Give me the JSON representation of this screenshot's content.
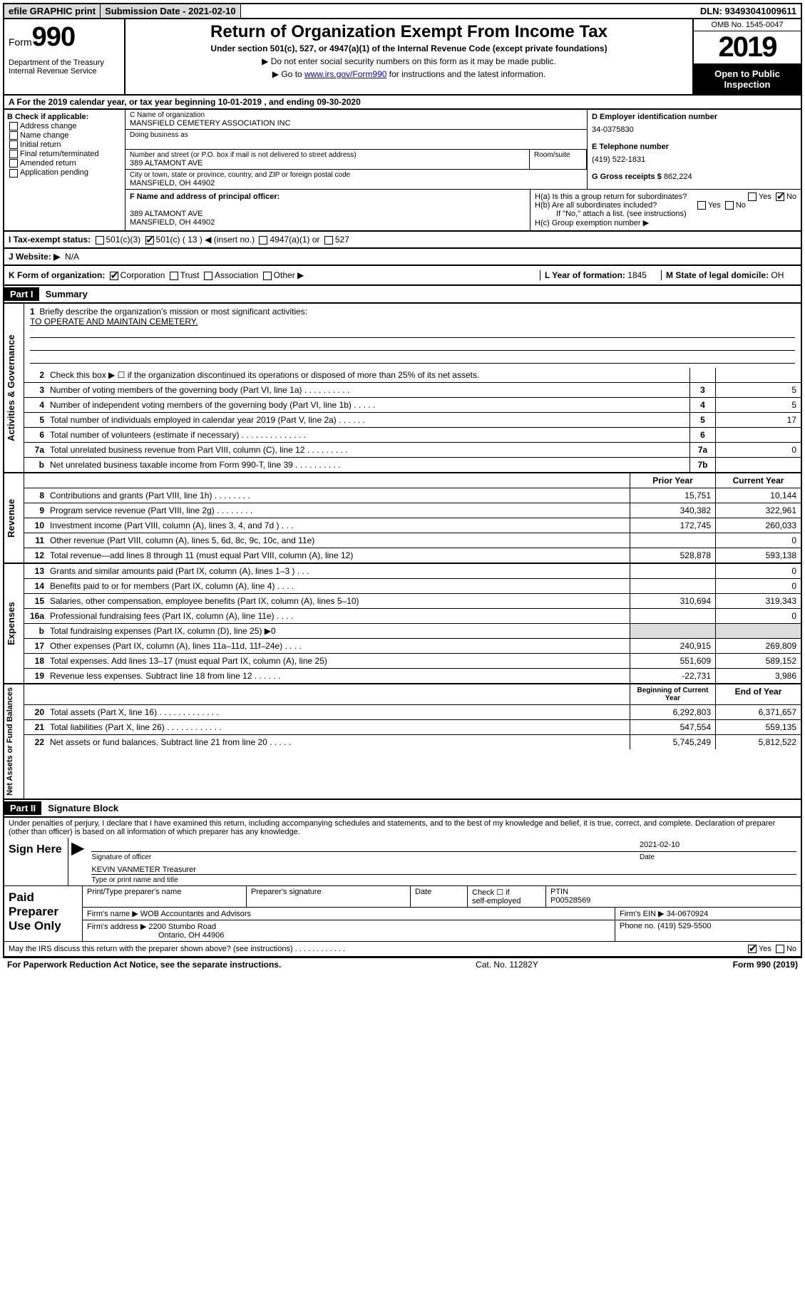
{
  "topbar": {
    "efile": "efile GRAPHIC print",
    "submission": "Submission Date - 2021-02-10",
    "dln": "DLN: 93493041009611"
  },
  "header": {
    "form_word": "Form",
    "form_num": "990",
    "dept": "Department of the Treasury\nInternal Revenue Service",
    "title": "Return of Organization Exempt From Income Tax",
    "subtitle": "Under section 501(c), 527, or 4947(a)(1) of the Internal Revenue Code (except private foundations)",
    "line1": "▶ Do not enter social security numbers on this form as it may be made public.",
    "line2_pre": "▶ Go to ",
    "line2_link": "www.irs.gov/Form990",
    "line2_post": " for instructions and the latest information.",
    "omb": "OMB No. 1545-0047",
    "year": "2019",
    "inspection": "Open to Public Inspection"
  },
  "section_a": "A For the 2019 calendar year, or tax year beginning 10-01-2019    , and ending 09-30-2020",
  "block_b": {
    "title": "B Check if applicable:",
    "items": [
      "Address change",
      "Name change",
      "Initial return",
      "Final return/terminated",
      "Amended return",
      "Application pending"
    ]
  },
  "block_c": {
    "name_label": "C Name of organization",
    "name": "MANSFIELD CEMETERY ASSOCIATION INC",
    "dba_label": "Doing business as",
    "street_label": "Number and street (or P.O. box if mail is not delivered to street address)",
    "room_label": "Room/suite",
    "street": "389 ALTAMONT AVE",
    "city_label": "City or town, state or province, country, and ZIP or foreign postal code",
    "city": "MANSFIELD, OH  44902"
  },
  "block_d": {
    "label": "D Employer identification number",
    "value": "34-0375830",
    "e_label": "E Telephone number",
    "e_value": "(419) 522-1831",
    "g_label": "G Gross receipts $",
    "g_value": "862,224"
  },
  "block_f": {
    "label": "F Name and address of principal officer:",
    "addr1": "389 ALTAMONT AVE",
    "addr2": "MANSFIELD, OH  44902"
  },
  "block_h": {
    "a": "H(a)  Is this a group return for subordinates?",
    "b": "H(b)  Are all subordinates included?",
    "note": "If \"No,\" attach a list. (see instructions)",
    "c": "H(c)  Group exemption number ▶"
  },
  "block_i": {
    "label": "I   Tax-exempt status:",
    "opts": [
      "501(c)(3)",
      "501(c) ( 13 ) ◀ (insert no.)",
      "4947(a)(1) or",
      "527"
    ]
  },
  "block_j": {
    "label": "J   Website: ▶",
    "value": "N/A"
  },
  "block_k": {
    "label": "K Form of organization:",
    "opts": [
      "Corporation",
      "Trust",
      "Association",
      "Other ▶"
    ],
    "l_label": "L Year of formation:",
    "l_value": "1845",
    "m_label": "M State of legal domicile:",
    "m_value": "OH"
  },
  "part1": {
    "tag": "Part I",
    "title": "Summary"
  },
  "mission": {
    "num": "1",
    "label": "Briefly describe the organization's mission or most significant activities:",
    "text": "TO OPERATE AND MAINTAIN CEMETERY."
  },
  "lines_gov": [
    {
      "n": "2",
      "t": "Check this box ▶ ☐  if the organization discontinued its operations or disposed of more than 25% of its net assets.",
      "box": "",
      "v": ""
    },
    {
      "n": "3",
      "t": "Number of voting members of the governing body (Part VI, line 1a)  .   .   .   .   .   .   .   .   .   .",
      "box": "3",
      "v": "5"
    },
    {
      "n": "4",
      "t": "Number of independent voting members of the governing body (Part VI, line 1b)  .   .   .   .   .",
      "box": "4",
      "v": "5"
    },
    {
      "n": "5",
      "t": "Total number of individuals employed in calendar year 2019 (Part V, line 2a)  .   .   .   .   .   .",
      "box": "5",
      "v": "17"
    },
    {
      "n": "6",
      "t": "Total number of volunteers (estimate if necessary)  .   .   .   .   .   .   .   .   .   .   .   .   .   .",
      "box": "6",
      "v": ""
    },
    {
      "n": "7a",
      "t": "Total unrelated business revenue from Part VIII, column (C), line 12  .   .   .   .   .   .   .   .   .",
      "box": "7a",
      "v": "0"
    },
    {
      "n": "b",
      "t": "Net unrelated business taxable income from Form 990-T, line 39  .   .   .   .   .   .   .   .   .   .",
      "box": "7b",
      "v": ""
    }
  ],
  "year_headers": {
    "prior": "Prior Year",
    "current": "Current Year"
  },
  "lines_rev": [
    {
      "n": "8",
      "t": "Contributions and grants (Part VIII, line 1h)  .   .   .   .   .   .   .   .",
      "p": "15,751",
      "c": "10,144"
    },
    {
      "n": "9",
      "t": "Program service revenue (Part VIII, line 2g)  .   .   .   .   .   .   .   .",
      "p": "340,382",
      "c": "322,961"
    },
    {
      "n": "10",
      "t": "Investment income (Part VIII, column (A), lines 3, 4, and 7d )  .   .   .",
      "p": "172,745",
      "c": "260,033"
    },
    {
      "n": "11",
      "t": "Other revenue (Part VIII, column (A), lines 5, 6d, 8c, 9c, 10c, and 11e)",
      "p": "",
      "c": "0"
    },
    {
      "n": "12",
      "t": "Total revenue—add lines 8 through 11 (must equal Part VIII, column (A), line 12)",
      "p": "528,878",
      "c": "593,138"
    }
  ],
  "lines_exp": [
    {
      "n": "13",
      "t": "Grants and similar amounts paid (Part IX, column (A), lines 1–3 )  .   .   .",
      "p": "",
      "c": "0"
    },
    {
      "n": "14",
      "t": "Benefits paid to or for members (Part IX, column (A), line 4)  .   .   .   .",
      "p": "",
      "c": "0"
    },
    {
      "n": "15",
      "t": "Salaries, other compensation, employee benefits (Part IX, column (A), lines 5–10)",
      "p": "310,694",
      "c": "319,343"
    },
    {
      "n": "16a",
      "t": "Professional fundraising fees (Part IX, column (A), line 11e)  .   .   .   .",
      "p": "",
      "c": "0"
    },
    {
      "n": "b",
      "t": "Total fundraising expenses (Part IX, column (D), line 25) ▶0",
      "p": "grey",
      "c": "grey"
    },
    {
      "n": "17",
      "t": "Other expenses (Part IX, column (A), lines 11a–11d, 11f–24e)  .   .   .   .",
      "p": "240,915",
      "c": "269,809"
    },
    {
      "n": "18",
      "t": "Total expenses. Add lines 13–17 (must equal Part IX, column (A), line 25)",
      "p": "551,609",
      "c": "589,152"
    },
    {
      "n": "19",
      "t": "Revenue less expenses. Subtract line 18 from line 12  .   .   .   .   .   .",
      "p": "-22,731",
      "c": "3,986"
    }
  ],
  "net_headers": {
    "begin": "Beginning of Current Year",
    "end": "End of Year"
  },
  "lines_net": [
    {
      "n": "20",
      "t": "Total assets (Part X, line 16)  .   .   .   .   .   .   .   .   .   .   .   .   .",
      "p": "6,292,803",
      "c": "6,371,657"
    },
    {
      "n": "21",
      "t": "Total liabilities (Part X, line 26)  .   .   .   .   .   .   .   .   .   .   .   .",
      "p": "547,554",
      "c": "559,135"
    },
    {
      "n": "22",
      "t": "Net assets or fund balances. Subtract line 21 from line 20  .   .   .   .   .",
      "p": "5,745,249",
      "c": "5,812,522"
    }
  ],
  "part2": {
    "tag": "Part II",
    "title": "Signature Block"
  },
  "perjury": "Under penalties of perjury, I declare that I have examined this return, including accompanying schedules and statements, and to the best of my knowledge and belief, it is true, correct, and complete. Declaration of preparer (other than officer) is based on all information of which preparer has any knowledge.",
  "sign": {
    "label": "Sign Here",
    "sig_label": "Signature of officer",
    "date_label": "Date",
    "date": "2021-02-10",
    "name": "KEVIN VANMETER  Treasurer",
    "name_label": "Type or print name and title"
  },
  "prep": {
    "label": "Paid Preparer Use Only",
    "h1": "Print/Type preparer's name",
    "h2": "Preparer's signature",
    "h3": "Date",
    "h4_a": "Check ☐ if",
    "h4_b": "self-employed",
    "h5": "PTIN",
    "ptin": "P00528569",
    "firm_label": "Firm's name    ▶",
    "firm": "WOB Accountants and Advisors",
    "ein_label": "Firm's EIN ▶",
    "ein": "34-0670924",
    "addr_label": "Firm's address ▶",
    "addr1": "2200 Stumbo Road",
    "addr2": "Ontario, OH  44906",
    "phone_label": "Phone no.",
    "phone": "(419) 529-5500"
  },
  "discuss": "May the IRS discuss this return with the preparer shown above? (see instructions)   .   .   .   .   .   .   .   .   .   .   .   .",
  "footer": {
    "left": "For Paperwork Reduction Act Notice, see the separate instructions.",
    "mid": "Cat. No. 11282Y",
    "right": "Form 990 (2019)"
  },
  "vtabs": {
    "gov": "Activities & Governance",
    "rev": "Revenue",
    "exp": "Expenses",
    "net": "Net Assets or Fund Balances"
  },
  "yes": "Yes",
  "no": "No"
}
